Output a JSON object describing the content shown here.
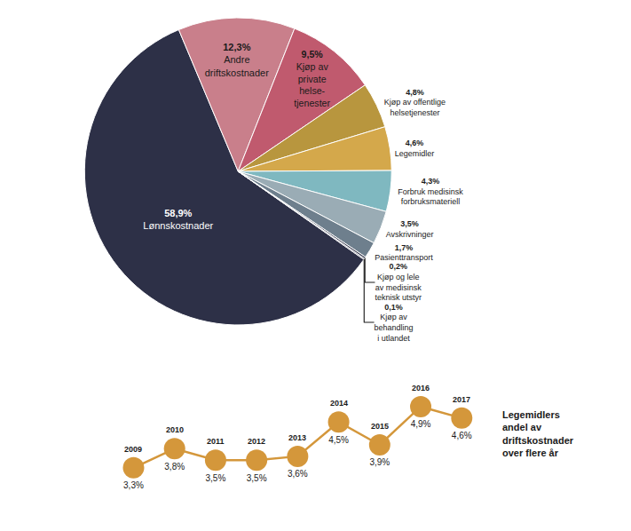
{
  "chart_data": [
    {
      "type": "pie",
      "categories": [
        "Lønnskostnader",
        "Andre\ndriftskostnader",
        "Kjøp av\nprivate\nhelse-\ntjenester",
        "Kjøp av offentlige\nhelsetjenester",
        "Legemidler",
        "Forbruk medisinsk\nforbruksmateriell",
        "Avskrivninger",
        "Pasienttransport",
        "Kjøp og lele\nav medisinsk\nteknisk utstyr",
        "Kjøp av\nbehandling\ni utlandet"
      ],
      "values": [
        58.9,
        12.3,
        9.5,
        4.8,
        4.6,
        4.3,
        3.5,
        1.7,
        0.2,
        0.1
      ],
      "value_labels": [
        "58,9%",
        "12,3%",
        "9,5%",
        "4,8%",
        "4,6%",
        "4,3%",
        "3,5%",
        "1,7%",
        "0,2%",
        "0,1%"
      ],
      "colors": [
        "#2d3047",
        "#c97f8b",
        "#c05a6e",
        "#b8963e",
        "#d4a84b",
        "#7fb8c0",
        "#9aacb5",
        "#6e7f8d",
        "#3d4155",
        "#2d3047"
      ],
      "data_labels": true
    },
    {
      "type": "line",
      "title": "Legemidlers\nandel av\ndriftskostnader\nover flere år",
      "categories": [
        "2009",
        "2010",
        "2011",
        "2012",
        "2013",
        "2014",
        "2015",
        "2016",
        "2017"
      ],
      "values": [
        3.3,
        3.8,
        3.5,
        3.5,
        3.6,
        4.5,
        3.9,
        4.9,
        4.6
      ],
      "value_labels": [
        "3,3%",
        "3,8%",
        "3,5%",
        "3,5%",
        "3,6%",
        "4,5%",
        "3,9%",
        "4,9%",
        "4,6%"
      ],
      "color": "#d4973b",
      "ylim": [
        2.5,
        6.0
      ],
      "tick_labels": false,
      "grid": false,
      "data_labels": true
    }
  ]
}
